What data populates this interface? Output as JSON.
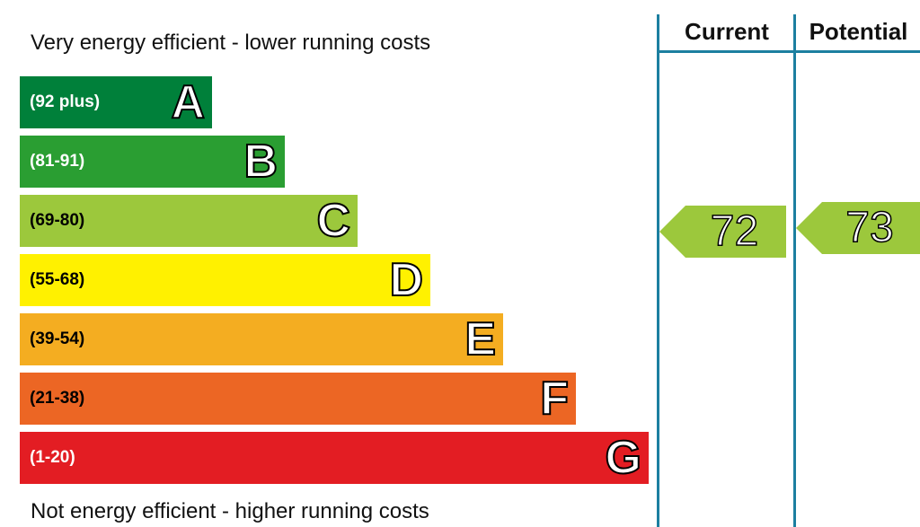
{
  "captions": {
    "top": "Very energy efficient - lower running costs",
    "bottom": "Not energy efficient - higher running costs"
  },
  "columns": {
    "current": "Current",
    "potential": "Potential"
  },
  "chart_data": {
    "type": "bar",
    "categories": [
      "A",
      "B",
      "C",
      "D",
      "E",
      "F",
      "G"
    ],
    "ranges": [
      "(92 plus)",
      "(81-91)",
      "(69-80)",
      "(55-68)",
      "(39-54)",
      "(21-38)",
      "(1-20)"
    ],
    "colors": [
      "#00803a",
      "#2a9e32",
      "#9cc83c",
      "#fff100",
      "#f4ad21",
      "#ec6624",
      "#e31d23"
    ],
    "range_text_colors": [
      "#ffffff",
      "#ffffff",
      "#000000",
      "#000000",
      "#000000",
      "#000000",
      "#ffffff"
    ],
    "current": {
      "value": 72,
      "band": "C",
      "color": "#9cc83c"
    },
    "potential": {
      "value": 73,
      "band": "C",
      "color": "#9cc83c"
    }
  }
}
